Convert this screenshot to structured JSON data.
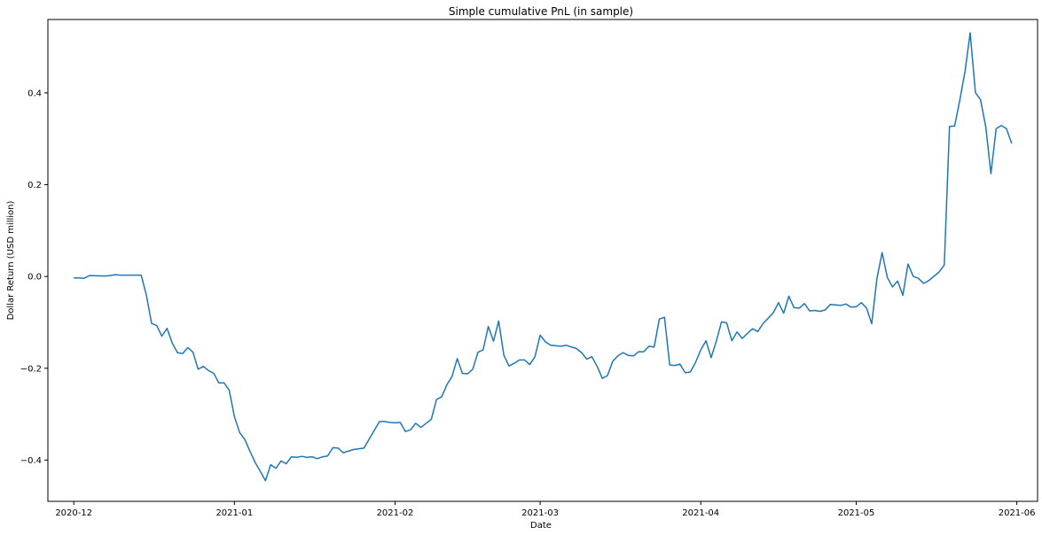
{
  "chart_data": {
    "type": "line",
    "title": "Simple cumulative PnL (in sample)",
    "xlabel": "Date",
    "ylabel": "Dollar Return (USD million)",
    "x_ticks": [
      "2020-12",
      "2021-01",
      "2021-02",
      "2021-03",
      "2021-04",
      "2021-05",
      "2021-06"
    ],
    "y_ticks": [
      "−0.4",
      "−0.2",
      "0.0",
      "0.2",
      "0.4"
    ],
    "y_tick_values": [
      -0.4,
      -0.2,
      0.0,
      0.2,
      0.4
    ],
    "xlim": [
      "2020-11-26",
      "2021-06-05"
    ],
    "ylim": [
      -0.49,
      0.56
    ],
    "grid": false,
    "series_color": "#1f77b4",
    "series": [
      {
        "points": [
          [
            "2020-12-01",
            -0.003
          ],
          [
            "2020-12-02",
            -0.003
          ],
          [
            "2020-12-03",
            -0.004
          ],
          [
            "2020-12-04",
            0.002
          ],
          [
            "2020-12-07",
            0.001
          ],
          [
            "2020-12-08",
            0.002
          ],
          [
            "2020-12-09",
            0.004
          ],
          [
            "2020-12-10",
            0.003
          ],
          [
            "2020-12-11",
            0.003
          ],
          [
            "2020-12-14",
            0.003
          ],
          [
            "2020-12-15",
            -0.04
          ],
          [
            "2020-12-16",
            -0.102
          ],
          [
            "2020-12-17",
            -0.107
          ],
          [
            "2020-12-18",
            -0.13
          ],
          [
            "2020-12-19",
            -0.113
          ],
          [
            "2020-12-20",
            -0.145
          ],
          [
            "2020-12-21",
            -0.166
          ],
          [
            "2020-12-22",
            -0.168
          ],
          [
            "2020-12-23",
            -0.155
          ],
          [
            "2020-12-24",
            -0.165
          ],
          [
            "2020-12-25",
            -0.202
          ],
          [
            "2020-12-26",
            -0.196
          ],
          [
            "2020-12-27",
            -0.205
          ],
          [
            "2020-12-28",
            -0.211
          ],
          [
            "2020-12-29",
            -0.232
          ],
          [
            "2020-12-30",
            -0.232
          ],
          [
            "2020-12-31",
            -0.248
          ],
          [
            "2021-01-01",
            -0.305
          ],
          [
            "2021-01-02",
            -0.34
          ],
          [
            "2021-01-03",
            -0.355
          ],
          [
            "2021-01-04",
            -0.381
          ],
          [
            "2021-01-05",
            -0.405
          ],
          [
            "2021-01-06",
            -0.425
          ],
          [
            "2021-01-07",
            -0.445
          ],
          [
            "2021-01-08",
            -0.41
          ],
          [
            "2021-01-09",
            -0.418
          ],
          [
            "2021-01-10",
            -0.402
          ],
          [
            "2021-01-11",
            -0.408
          ],
          [
            "2021-01-12",
            -0.393
          ],
          [
            "2021-01-13",
            -0.394
          ],
          [
            "2021-01-14",
            -0.392
          ],
          [
            "2021-01-15",
            -0.394
          ],
          [
            "2021-01-16",
            -0.393
          ],
          [
            "2021-01-17",
            -0.397
          ],
          [
            "2021-01-18",
            -0.393
          ],
          [
            "2021-01-19",
            -0.391
          ],
          [
            "2021-01-20",
            -0.373
          ],
          [
            "2021-01-21",
            -0.374
          ],
          [
            "2021-01-22",
            -0.384
          ],
          [
            "2021-01-24",
            -0.377
          ],
          [
            "2021-01-26",
            -0.374
          ],
          [
            "2021-01-29",
            -0.316
          ],
          [
            "2021-01-30",
            -0.316
          ],
          [
            "2021-01-31",
            -0.318
          ],
          [
            "2021-02-01",
            -0.319
          ],
          [
            "2021-02-02",
            -0.318
          ],
          [
            "2021-02-03",
            -0.338
          ],
          [
            "2021-02-04",
            -0.334
          ],
          [
            "2021-02-05",
            -0.32
          ],
          [
            "2021-02-06",
            -0.329
          ],
          [
            "2021-02-08",
            -0.311
          ],
          [
            "2021-02-09",
            -0.268
          ],
          [
            "2021-02-10",
            -0.262
          ],
          [
            "2021-02-11",
            -0.236
          ],
          [
            "2021-02-12",
            -0.218
          ],
          [
            "2021-02-13",
            -0.179
          ],
          [
            "2021-02-14",
            -0.211
          ],
          [
            "2021-02-15",
            -0.212
          ],
          [
            "2021-02-16",
            -0.202
          ],
          [
            "2021-02-17",
            -0.165
          ],
          [
            "2021-02-18",
            -0.16
          ],
          [
            "2021-02-19",
            -0.109
          ],
          [
            "2021-02-20",
            -0.141
          ],
          [
            "2021-02-21",
            -0.097
          ],
          [
            "2021-02-22",
            -0.172
          ],
          [
            "2021-02-23",
            -0.195
          ],
          [
            "2021-02-24",
            -0.189
          ],
          [
            "2021-02-25",
            -0.182
          ],
          [
            "2021-02-26",
            -0.182
          ],
          [
            "2021-02-27",
            -0.192
          ],
          [
            "2021-02-28",
            -0.175
          ],
          [
            "2021-03-01",
            -0.128
          ],
          [
            "2021-03-02",
            -0.142
          ],
          [
            "2021-03-03",
            -0.15
          ],
          [
            "2021-03-05",
            -0.152
          ],
          [
            "2021-03-06",
            -0.15
          ],
          [
            "2021-03-08",
            -0.157
          ],
          [
            "2021-03-09",
            -0.166
          ],
          [
            "2021-03-10",
            -0.18
          ],
          [
            "2021-03-11",
            -0.175
          ],
          [
            "2021-03-12",
            -0.196
          ],
          [
            "2021-03-13",
            -0.222
          ],
          [
            "2021-03-14",
            -0.216
          ],
          [
            "2021-03-15",
            -0.185
          ],
          [
            "2021-03-16",
            -0.173
          ],
          [
            "2021-03-17",
            -0.166
          ],
          [
            "2021-03-18",
            -0.172
          ],
          [
            "2021-03-19",
            -0.173
          ],
          [
            "2021-03-20",
            -0.164
          ],
          [
            "2021-03-21",
            -0.164
          ],
          [
            "2021-03-22",
            -0.152
          ],
          [
            "2021-03-23",
            -0.154
          ],
          [
            "2021-03-24",
            -0.093
          ],
          [
            "2021-03-25",
            -0.089
          ],
          [
            "2021-03-26",
            -0.193
          ],
          [
            "2021-03-27",
            -0.194
          ],
          [
            "2021-03-28",
            -0.191
          ],
          [
            "2021-03-29",
            -0.21
          ],
          [
            "2021-03-30",
            -0.208
          ],
          [
            "2021-03-31",
            -0.187
          ],
          [
            "2021-04-01",
            -0.16
          ],
          [
            "2021-04-02",
            -0.14
          ],
          [
            "2021-04-03",
            -0.177
          ],
          [
            "2021-04-04",
            -0.141
          ],
          [
            "2021-04-05",
            -0.099
          ],
          [
            "2021-04-06",
            -0.101
          ],
          [
            "2021-04-07",
            -0.14
          ],
          [
            "2021-04-08",
            -0.121
          ],
          [
            "2021-04-09",
            -0.135
          ],
          [
            "2021-04-10",
            -0.124
          ],
          [
            "2021-04-11",
            -0.114
          ],
          [
            "2021-04-12",
            -0.12
          ],
          [
            "2021-04-13",
            -0.103
          ],
          [
            "2021-04-14",
            -0.091
          ],
          [
            "2021-04-15",
            -0.079
          ],
          [
            "2021-04-16",
            -0.057
          ],
          [
            "2021-04-17",
            -0.08
          ],
          [
            "2021-04-18",
            -0.043
          ],
          [
            "2021-04-19",
            -0.068
          ],
          [
            "2021-04-20",
            -0.069
          ],
          [
            "2021-04-21",
            -0.059
          ],
          [
            "2021-04-22",
            -0.075
          ],
          [
            "2021-04-23",
            -0.074
          ],
          [
            "2021-04-24",
            -0.076
          ],
          [
            "2021-04-25",
            -0.073
          ],
          [
            "2021-04-26",
            -0.061
          ],
          [
            "2021-04-27",
            -0.062
          ],
          [
            "2021-04-28",
            -0.063
          ],
          [
            "2021-04-29",
            -0.06
          ],
          [
            "2021-04-30",
            -0.067
          ],
          [
            "2021-05-01",
            -0.066
          ],
          [
            "2021-05-02",
            -0.057
          ],
          [
            "2021-05-03",
            -0.069
          ],
          [
            "2021-05-04",
            -0.103
          ],
          [
            "2021-05-05",
            -0.004
          ],
          [
            "2021-05-06",
            0.052
          ],
          [
            "2021-05-07",
            -0.002
          ],
          [
            "2021-05-08",
            -0.023
          ],
          [
            "2021-05-09",
            -0.01
          ],
          [
            "2021-05-10",
            -0.041
          ],
          [
            "2021-05-11",
            0.027
          ],
          [
            "2021-05-12",
            0.0
          ],
          [
            "2021-05-13",
            -0.004
          ],
          [
            "2021-05-14",
            -0.015
          ],
          [
            "2021-05-15",
            -0.009
          ],
          [
            "2021-05-17",
            0.01
          ],
          [
            "2021-05-18",
            0.025
          ],
          [
            "2021-05-19",
            0.327
          ],
          [
            "2021-05-20",
            0.328
          ],
          [
            "2021-05-21",
            0.385
          ],
          [
            "2021-05-22",
            0.447
          ],
          [
            "2021-05-23",
            0.531
          ],
          [
            "2021-05-24",
            0.401
          ],
          [
            "2021-05-25",
            0.385
          ],
          [
            "2021-05-26",
            0.326
          ],
          [
            "2021-05-27",
            0.224
          ],
          [
            "2021-05-28",
            0.322
          ],
          [
            "2021-05-29",
            0.329
          ],
          [
            "2021-05-30",
            0.322
          ],
          [
            "2021-05-31",
            0.29
          ]
        ]
      }
    ]
  }
}
